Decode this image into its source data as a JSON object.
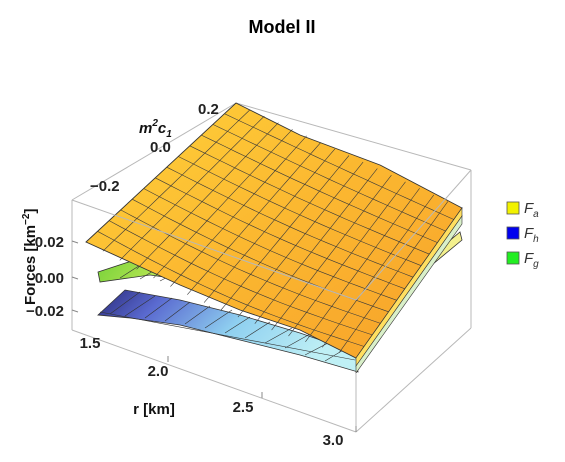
{
  "chart_data": {
    "type": "surface3d",
    "title": "Model II",
    "axes": {
      "r": {
        "label": "r [km]",
        "range": [
          1.5,
          3.0
        ],
        "ticks": [
          "1.5",
          "2.0",
          "2.5",
          "3.0"
        ]
      },
      "m2c1": {
        "label_base": "m",
        "label_sup": "2",
        "label_mid": "c",
        "label_sub": "1",
        "range": [
          -0.3,
          0.2
        ],
        "ticks": [
          "0.2",
          "0.0",
          "−0.2"
        ]
      },
      "forces": {
        "label_base": "Forces [km",
        "label_sup": "−2",
        "label_end": "]",
        "range": [
          -0.03,
          0.03
        ],
        "ticks": [
          "0.02",
          "0.00",
          "−0.02"
        ]
      }
    },
    "series": [
      {
        "name_base": "F",
        "name_sub": "a",
        "color": "#f2f200"
      },
      {
        "name_base": "F",
        "name_sub": "h",
        "color": "#0000ee"
      },
      {
        "name_base": "F",
        "name_sub": "g",
        "color": "#22ee22"
      }
    ],
    "legend_position": "right"
  }
}
